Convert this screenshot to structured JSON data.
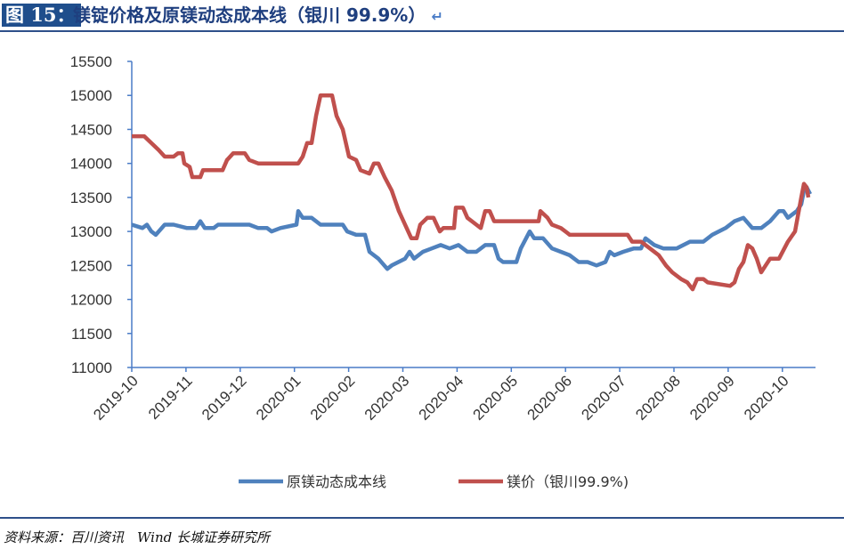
{
  "header": {
    "figure_label": "图 15：",
    "title": "镁锭价格及原镁动态成本线（银川 99.9%）",
    "return_mark": "↵"
  },
  "footer": {
    "source": "资料来源：百川资讯　Wind  长城证券研究所"
  },
  "chart_data": {
    "type": "line",
    "title": "镁锭价格及原镁动态成本线（银川 99.9%）",
    "xlabel": "",
    "ylabel": "",
    "x_unit": "days since 2019-10-01",
    "xlim": [
      0,
      384
    ],
    "ylim": [
      11000,
      15500
    ],
    "yticks": [
      11000,
      11500,
      12000,
      12500,
      13000,
      13500,
      14000,
      14500,
      15000,
      15500
    ],
    "xtick_labels": [
      "2019-10",
      "2019-11",
      "2019-12",
      "2020-01",
      "2020-02",
      "2020-03",
      "2020-04",
      "2020-05",
      "2020-06",
      "2020-07",
      "2020-08",
      "2020-09",
      "2020-10"
    ],
    "grid": false,
    "legend_position": "bottom",
    "series": [
      {
        "name": "原镁动态成本线",
        "color": "#4f81bd",
        "points": [
          [
            0,
            13100
          ],
          [
            6,
            13050
          ],
          [
            8.5,
            13100
          ],
          [
            11,
            13000
          ],
          [
            13.5,
            12950
          ],
          [
            18.5,
            13100
          ],
          [
            23.5,
            13100
          ],
          [
            31,
            13050
          ],
          [
            36,
            13050
          ],
          [
            38.5,
            13150
          ],
          [
            41,
            13050
          ],
          [
            46,
            13050
          ],
          [
            48.5,
            13100
          ],
          [
            56,
            13100
          ],
          [
            66,
            13100
          ],
          [
            71,
            13050
          ],
          [
            76,
            13050
          ],
          [
            78.5,
            13000
          ],
          [
            83.5,
            13050
          ],
          [
            92.5,
            13100
          ],
          [
            93.5,
            13300
          ],
          [
            96,
            13200
          ],
          [
            101,
            13200
          ],
          [
            106,
            13100
          ],
          [
            113.5,
            13100
          ],
          [
            118.5,
            13100
          ],
          [
            121,
            13000
          ],
          [
            126,
            12950
          ],
          [
            131,
            12950
          ],
          [
            133.5,
            12700
          ],
          [
            138.5,
            12600
          ],
          [
            143.5,
            12450
          ],
          [
            146,
            12500
          ],
          [
            153.5,
            12600
          ],
          [
            156,
            12700
          ],
          [
            158.5,
            12600
          ],
          [
            163.5,
            12700
          ],
          [
            168.5,
            12750
          ],
          [
            173.5,
            12800
          ],
          [
            178.5,
            12750
          ],
          [
            183.5,
            12800
          ],
          [
            188.5,
            12700
          ],
          [
            193.5,
            12700
          ],
          [
            198.5,
            12800
          ],
          [
            203.5,
            12800
          ],
          [
            206,
            12600
          ],
          [
            208.5,
            12550
          ],
          [
            213.5,
            12550
          ],
          [
            216,
            12550
          ],
          [
            218.5,
            12750
          ],
          [
            223.5,
            13000
          ],
          [
            226,
            12900
          ],
          [
            231,
            12900
          ],
          [
            236,
            12750
          ],
          [
            241,
            12700
          ],
          [
            246,
            12650
          ],
          [
            251,
            12550
          ],
          [
            256,
            12550
          ],
          [
            261,
            12500
          ],
          [
            266,
            12550
          ],
          [
            268.5,
            12700
          ],
          [
            271,
            12650
          ],
          [
            276,
            12700
          ],
          [
            282,
            12750
          ],
          [
            286,
            12750
          ],
          [
            288.5,
            12900
          ],
          [
            293.5,
            12800
          ],
          [
            298.5,
            12750
          ],
          [
            306,
            12750
          ],
          [
            313.5,
            12850
          ],
          [
            321,
            12850
          ],
          [
            326,
            12950
          ],
          [
            333.5,
            13050
          ],
          [
            338.5,
            13150
          ],
          [
            343.5,
            13200
          ],
          [
            348.5,
            13050
          ],
          [
            353.5,
            13050
          ],
          [
            358.5,
            13150
          ],
          [
            363.5,
            13300
          ],
          [
            366,
            13300
          ],
          [
            368.5,
            13200
          ],
          [
            373.5,
            13300
          ],
          [
            376,
            13400
          ],
          [
            377.5,
            13600
          ],
          [
            379,
            13650
          ],
          [
            381,
            13550
          ]
        ]
      },
      {
        "name": "镁价（银川99.9%)",
        "color": "#c0504d",
        "points": [
          [
            0,
            14400
          ],
          [
            7,
            14400
          ],
          [
            11,
            14300
          ],
          [
            15,
            14200
          ],
          [
            18.5,
            14100
          ],
          [
            23.5,
            14100
          ],
          [
            26,
            14150
          ],
          [
            28.5,
            14150
          ],
          [
            29.5,
            14000
          ],
          [
            32.5,
            13950
          ],
          [
            34,
            13800
          ],
          [
            38.5,
            13800
          ],
          [
            40,
            13900
          ],
          [
            51,
            13900
          ],
          [
            53.5,
            14050
          ],
          [
            57,
            14150
          ],
          [
            63.5,
            14150
          ],
          [
            66,
            14050
          ],
          [
            71,
            14000
          ],
          [
            93.5,
            14000
          ],
          [
            96,
            14100
          ],
          [
            98.5,
            14300
          ],
          [
            101,
            14300
          ],
          [
            103.5,
            14700
          ],
          [
            106,
            15000
          ],
          [
            112.5,
            15000
          ],
          [
            115,
            14700
          ],
          [
            118.5,
            14500
          ],
          [
            122,
            14100
          ],
          [
            126,
            14050
          ],
          [
            128.5,
            13900
          ],
          [
            133.5,
            13850
          ],
          [
            136,
            14000
          ],
          [
            138.5,
            14000
          ],
          [
            142,
            13800
          ],
          [
            146,
            13600
          ],
          [
            150,
            13300
          ],
          [
            153.5,
            13100
          ],
          [
            157,
            12900
          ],
          [
            160,
            12900
          ],
          [
            162,
            13100
          ],
          [
            166,
            13200
          ],
          [
            169.5,
            13200
          ],
          [
            173,
            13000
          ],
          [
            175,
            13050
          ],
          [
            181,
            13050
          ],
          [
            182,
            13350
          ],
          [
            186,
            13350
          ],
          [
            188.5,
            13200
          ],
          [
            193.5,
            13100
          ],
          [
            196,
            13050
          ],
          [
            198.5,
            13300
          ],
          [
            201,
            13300
          ],
          [
            203.5,
            13150
          ],
          [
            206,
            13150
          ],
          [
            228.5,
            13150
          ],
          [
            229.5,
            13300
          ],
          [
            233.5,
            13200
          ],
          [
            236,
            13100
          ],
          [
            241,
            13050
          ],
          [
            246,
            12950
          ],
          [
            251,
            12950
          ],
          [
            278.5,
            12950
          ],
          [
            281,
            12850
          ],
          [
            286,
            12850
          ],
          [
            291,
            12750
          ],
          [
            296,
            12650
          ],
          [
            300,
            12500
          ],
          [
            303.5,
            12400
          ],
          [
            308.5,
            12300
          ],
          [
            312,
            12250
          ],
          [
            315,
            12150
          ],
          [
            317.5,
            12300
          ],
          [
            321,
            12300
          ],
          [
            323.5,
            12250
          ],
          [
            336,
            12200
          ],
          [
            338.5,
            12250
          ],
          [
            341,
            12450
          ],
          [
            343.5,
            12550
          ],
          [
            346,
            12800
          ],
          [
            348.5,
            12750
          ],
          [
            351,
            12600
          ],
          [
            353.5,
            12400
          ],
          [
            356,
            12500
          ],
          [
            358.5,
            12600
          ],
          [
            363.5,
            12600
          ],
          [
            368.5,
            12850
          ],
          [
            372.5,
            13000
          ],
          [
            376,
            13500
          ],
          [
            377.5,
            13700
          ],
          [
            379,
            13650
          ],
          [
            380,
            13500
          ]
        ]
      }
    ]
  }
}
